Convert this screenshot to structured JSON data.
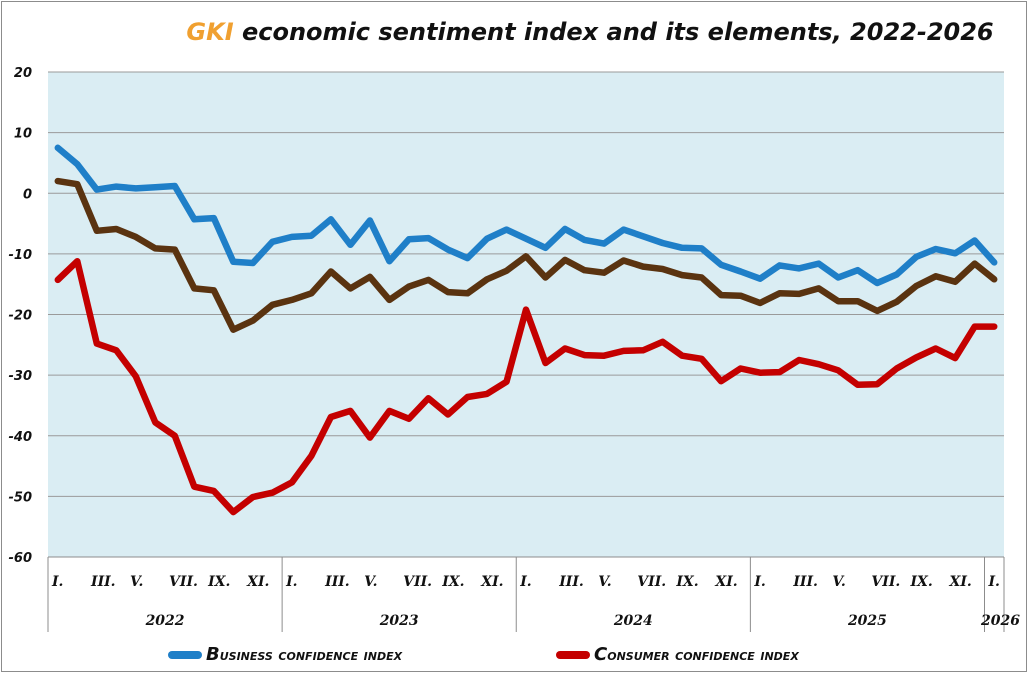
{
  "chart_data": {
    "type": "line",
    "title_brand": "GKI",
    "title_rest": " economic sentiment index and its elements, 2022-2026",
    "ylim": [
      -60,
      20
    ],
    "yticks": [
      20,
      10,
      0,
      -10,
      -20,
      -30,
      -40,
      -50,
      -60
    ],
    "background": "#daedf3",
    "grid": true,
    "legend_position": "bottom",
    "month_tick_labels": [
      {
        "index": 0,
        "label": "I."
      },
      {
        "index": 2,
        "label": "III."
      },
      {
        "index": 4,
        "label": "V."
      },
      {
        "index": 6,
        "label": "VII."
      },
      {
        "index": 8,
        "label": "IX."
      },
      {
        "index": 10,
        "label": "XI."
      },
      {
        "index": 12,
        "label": "I."
      },
      {
        "index": 14,
        "label": "III."
      },
      {
        "index": 16,
        "label": "V."
      },
      {
        "index": 18,
        "label": "VII."
      },
      {
        "index": 20,
        "label": "IX."
      },
      {
        "index": 22,
        "label": "XI."
      },
      {
        "index": 24,
        "label": "I."
      },
      {
        "index": 26,
        "label": "III."
      },
      {
        "index": 28,
        "label": "V."
      },
      {
        "index": 30,
        "label": "VII."
      },
      {
        "index": 32,
        "label": "IX."
      },
      {
        "index": 34,
        "label": "XI."
      },
      {
        "index": 36,
        "label": "I."
      },
      {
        "index": 38,
        "label": "III."
      },
      {
        "index": 40,
        "label": "V."
      },
      {
        "index": 42,
        "label": "VII."
      },
      {
        "index": 44,
        "label": "IX."
      },
      {
        "index": 46,
        "label": "XI."
      },
      {
        "index": 48,
        "label": "I."
      }
    ],
    "years": [
      {
        "label": "2022",
        "start": 0,
        "end": 12
      },
      {
        "label": "2023",
        "start": 12,
        "end": 24
      },
      {
        "label": "2024",
        "start": 24,
        "end": 36
      },
      {
        "label": "2025",
        "start": 36,
        "end": 48
      },
      {
        "label": "2026",
        "start": 48,
        "end": 49
      }
    ],
    "series": [
      {
        "name": "Business confidence index",
        "color": "#1f7fc8",
        "in_legend": true,
        "values": [
          7.5,
          4.8,
          0.6,
          1.1,
          0.8,
          1.0,
          1.2,
          -4.3,
          -4.1,
          -11.3,
          -11.5,
          -8.0,
          -7.2,
          -7.0,
          -4.3,
          -8.5,
          -4.5,
          -11.2,
          -7.6,
          -7.4,
          -9.3,
          -10.7,
          -7.5,
          -6.0,
          -7.5,
          -9.0,
          -5.9,
          -7.7,
          -8.3,
          -6.0,
          -7.1,
          -8.2,
          -9.0,
          -9.1,
          -11.8,
          -12.9,
          -14.1,
          -11.9,
          -12.4,
          -11.6,
          -13.9,
          -12.7,
          -14.8,
          -13.4,
          -10.5,
          -9.2,
          -9.9,
          -7.8,
          -11.4
        ]
      },
      {
        "name": "Economic sentiment index",
        "color": "#5a3310",
        "in_legend": false,
        "values": [
          2.0,
          1.5,
          -6.2,
          -5.9,
          -7.2,
          -9.1,
          -9.3,
          -15.7,
          -16.0,
          -22.5,
          -21.0,
          -18.4,
          -17.6,
          -16.5,
          -12.9,
          -15.7,
          -13.8,
          -17.6,
          -15.4,
          -14.3,
          -16.3,
          -16.5,
          -14.2,
          -12.8,
          -10.4,
          -13.9,
          -11.0,
          -12.7,
          -13.1,
          -11.1,
          -12.1,
          -12.5,
          -13.5,
          -13.9,
          -16.8,
          -16.9,
          -18.1,
          -16.5,
          -16.6,
          -15.7,
          -17.8,
          -17.8,
          -19.4,
          -17.9,
          -15.3,
          -13.7,
          -14.6,
          -11.6,
          -14.2
        ]
      },
      {
        "name": "Consumer confidence index",
        "color": "#c40000",
        "in_legend": true,
        "values": [
          -14.3,
          -11.2,
          -24.8,
          -25.9,
          -30.2,
          -37.8,
          -40.0,
          -48.4,
          -49.1,
          -52.6,
          -50.1,
          -49.4,
          -47.7,
          -43.3,
          -36.9,
          -35.9,
          -40.3,
          -35.9,
          -37.2,
          -33.8,
          -36.5,
          -33.6,
          -33.1,
          -31.1,
          -19.2,
          -28.0,
          -25.6,
          -26.7,
          -26.8,
          -26.0,
          -25.9,
          -24.5,
          -26.8,
          -27.3,
          -31.0,
          -28.9,
          -29.6,
          -29.5,
          -27.5,
          -28.2,
          -29.2,
          -31.6,
          -31.5,
          -28.9,
          -27.1,
          -25.6,
          -27.2,
          -22.0,
          -22.0
        ]
      }
    ]
  },
  "legend": {
    "business_initial": "B",
    "business_rest": "usiness confidence index",
    "consumer_initial": "C",
    "consumer_rest": "onsumer confidence index"
  }
}
